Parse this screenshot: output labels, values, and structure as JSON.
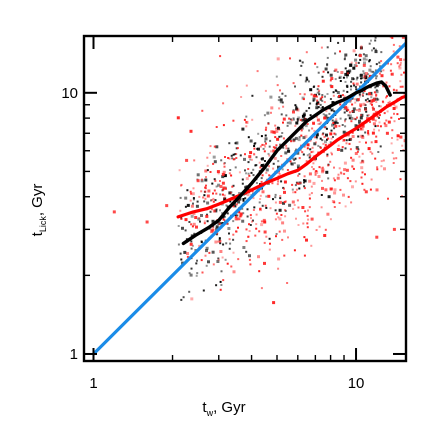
{
  "chart_data": {
    "type": "scatter",
    "title": "",
    "x_scale": "log",
    "y_scale": "log",
    "xlim": [
      0.92,
      15.5
    ],
    "ylim": [
      0.94,
      16.5
    ],
    "x_ticks": [
      {
        "value": 1,
        "label": "1"
      },
      {
        "value": 10,
        "label": "10"
      }
    ],
    "y_ticks": [
      {
        "value": 1,
        "label": "1"
      },
      {
        "value": 10,
        "label": "10"
      }
    ],
    "xlabel": {
      "main": "t",
      "sub": "w",
      "rest": ", Gyr"
    },
    "ylabel": {
      "main": "t",
      "sub": "Lick",
      "rest": ", Gyr"
    },
    "grid": false,
    "colors": {
      "black_points": "#000000",
      "red_points": "#ff1a1a",
      "black_line": "#000000",
      "red_line": "#ff0000",
      "one_to_one_line": "#1a8ce8"
    },
    "scatter_clouds": [
      {
        "color_key": "black_points",
        "count": 650,
        "seed": 17,
        "trend": [
          [
            2.3,
            2.6
          ],
          [
            3.0,
            3.5
          ],
          [
            4.0,
            4.8
          ],
          [
            5.0,
            6.0
          ],
          [
            6.5,
            7.8
          ],
          [
            8.0,
            9.0
          ],
          [
            10.0,
            10.0
          ],
          [
            12.0,
            11.0
          ]
        ],
        "x_range": [
          2.1,
          12.5
        ],
        "scatter_dex": 0.12
      },
      {
        "color_key": "red_points",
        "count": 750,
        "seed": 29,
        "trend": [
          [
            2.3,
            3.6
          ],
          [
            3.0,
            3.9
          ],
          [
            4.0,
            4.5
          ],
          [
            5.0,
            4.8
          ],
          [
            6.5,
            5.6
          ],
          [
            8.0,
            6.6
          ],
          [
            10.0,
            7.5
          ],
          [
            12.5,
            8.6
          ],
          [
            15.0,
            9.3
          ]
        ],
        "x_range": [
          2.1,
          15.5
        ],
        "scatter_dex": 0.16
      }
    ],
    "outlier_points": [
      {
        "x": 1.2,
        "y": 3.5,
        "color_key": "red_points"
      },
      {
        "x": 1.6,
        "y": 3.2,
        "color_key": "red_points"
      },
      {
        "x": 1.9,
        "y": 3.7,
        "color_key": "red_points"
      },
      {
        "x": 14.0,
        "y": 3.0,
        "color_key": "red_points"
      },
      {
        "x": 12.0,
        "y": 2.8,
        "color_key": "red_points"
      }
    ],
    "series": [
      {
        "style": "one_to_one_line",
        "x": [
          1,
          15.5
        ],
        "y": [
          1,
          15.5
        ]
      },
      {
        "style": "black_line",
        "x": [
          2.2,
          2.45,
          2.75,
          3.0,
          3.3,
          3.6,
          4.0,
          4.5,
          5.0,
          5.5,
          6.0,
          6.5,
          7.0,
          7.5,
          8.0,
          8.5,
          9.0,
          9.5,
          10.0,
          10.5,
          11.0,
          11.5,
          12.0,
          12.5,
          13.0,
          13.5
        ],
        "y": [
          2.65,
          2.85,
          3.05,
          3.25,
          3.65,
          4.0,
          4.5,
          5.2,
          6.0,
          6.6,
          7.2,
          7.8,
          8.2,
          8.6,
          8.9,
          9.2,
          9.4,
          9.7,
          10.0,
          10.2,
          10.5,
          10.7,
          10.9,
          11.0,
          10.6,
          9.8
        ]
      },
      {
        "style": "red_line",
        "x": [
          2.1,
          2.4,
          2.7,
          3.0,
          3.3,
          3.6,
          4.0,
          4.5,
          5.0,
          5.5,
          6.0,
          6.5,
          7.0,
          7.5,
          8.0,
          8.5,
          9.0,
          10.0,
          11.0,
          12.0,
          13.0,
          14.0,
          15.0,
          15.5
        ],
        "y": [
          3.35,
          3.5,
          3.6,
          3.75,
          3.9,
          4.05,
          4.25,
          4.5,
          4.7,
          4.9,
          5.05,
          5.35,
          5.7,
          6.0,
          6.3,
          6.6,
          6.85,
          7.3,
          7.8,
          8.3,
          8.8,
          9.2,
          9.6,
          9.7
        ]
      }
    ]
  }
}
